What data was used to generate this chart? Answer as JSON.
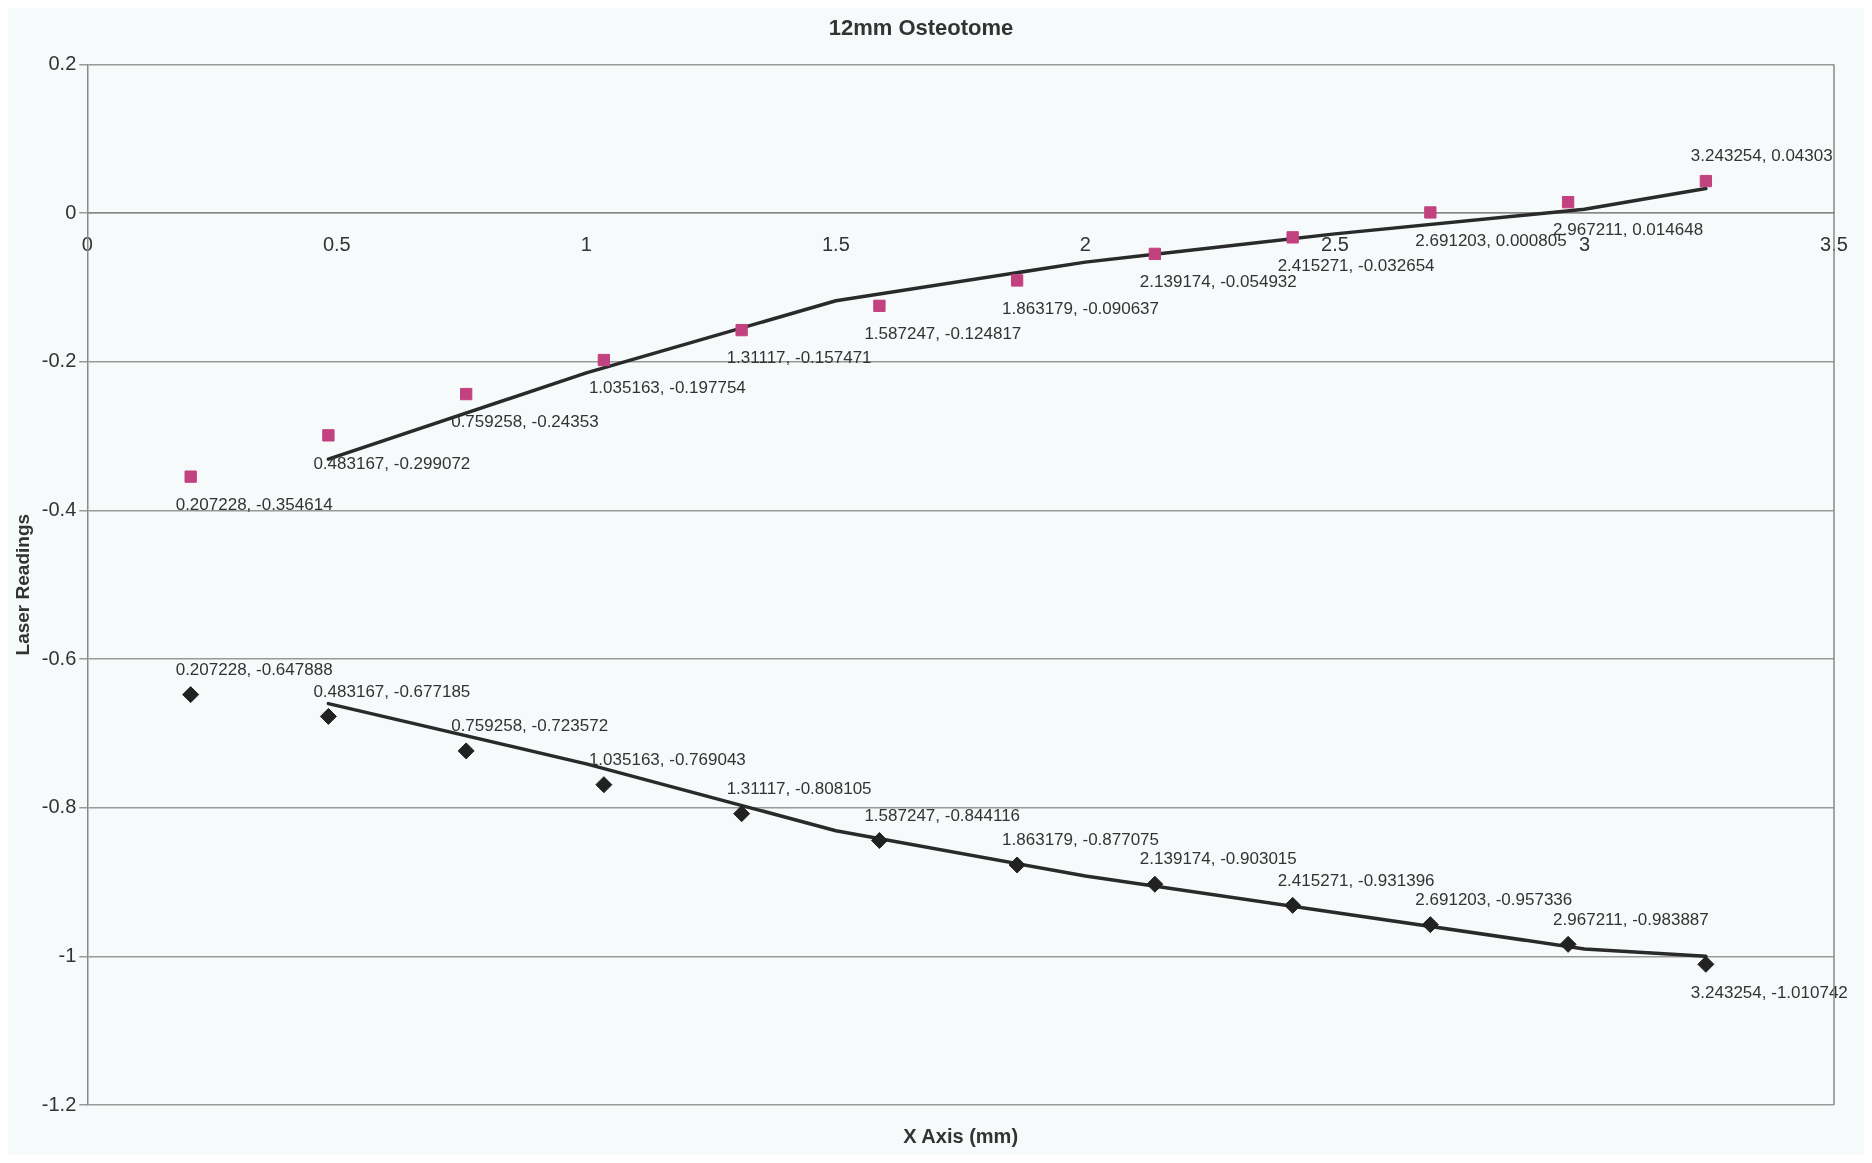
{
  "chart_data": {
    "type": "scatter",
    "title": "12mm Osteotome",
    "xlabel": "X Axis (mm)",
    "ylabel": "Laser Readings",
    "xlim": [
      0,
      3.5
    ],
    "xticks": [
      0,
      0.5,
      1,
      1.5,
      2,
      2.5,
      3,
      3.5
    ],
    "ylim": [
      -1.2,
      0.2
    ],
    "yticks": [
      -1.2,
      -1,
      -0.8,
      -0.6,
      -0.4,
      -0.2,
      0,
      0.2
    ],
    "grid": "y",
    "legend": false,
    "x": [
      0.207228,
      0.483167,
      0.759258,
      1.035163,
      1.31117,
      1.587247,
      1.863179,
      2.139174,
      2.415271,
      2.691203,
      2.967211,
      3.243254
    ],
    "series": [
      {
        "marker": "square",
        "color": "#c2417f",
        "values": [
          -0.354614,
          -0.299072,
          -0.24353,
          -0.197754,
          -0.157471,
          -0.124817,
          -0.090637,
          -0.054932,
          -0.032654,
          0.000805,
          0.014648,
          0.04303
        ],
        "value_labels": [
          "0.207228, -0.354614",
          "0.483167, -0.299072",
          "0.759258, -0.24353",
          "1.035163, -0.197754",
          "1.31117, -0.157471",
          "1.587247, -0.124817",
          "1.863179, -0.090637",
          "2.139174, -0.054932",
          "2.415271, -0.032654",
          "2.691203, 0.000805",
          "2.967211, 0.014648",
          "3.243254, 0.04303"
        ]
      },
      {
        "marker": "diamond",
        "color": "#222222",
        "values": [
          -0.647888,
          -0.677185,
          -0.723572,
          -0.769043,
          -0.808105,
          -0.844116,
          -0.877075,
          -0.903015,
          -0.931396,
          -0.957336,
          -0.983887,
          -1.010742
        ],
        "value_labels": [
          "0.207228, -0.647888",
          "0.483167, -0.677185",
          "0.759258, -0.723572",
          "1.035163, -0.769043",
          "1.31117, -0.808105",
          "1.587247, -0.844116",
          "1.863179, -0.877075",
          "2.139174, -0.903015",
          "2.415271, -0.931396",
          "2.691203, -0.957336",
          "2.967211, -0.983887",
          "3.243254, -1.010742"
        ]
      },
      {
        "type": "line",
        "marker": "none",
        "color": "#2a2a2a",
        "x": [
          0.483167,
          1,
          1.5,
          2,
          2.5,
          3,
          3.243254
        ],
        "values": [
          -0.331,
          -0.215,
          -0.118,
          -0.066,
          -0.028,
          0.005,
          0.033
        ]
      },
      {
        "type": "line",
        "marker": "none",
        "color": "#2a2a2a",
        "x": [
          0.483167,
          1,
          1.5,
          2,
          2.5,
          3,
          3.243254
        ],
        "values": [
          -0.66,
          -0.741,
          -0.831,
          -0.892,
          -0.941,
          -0.99,
          -1.0
        ]
      }
    ]
  }
}
